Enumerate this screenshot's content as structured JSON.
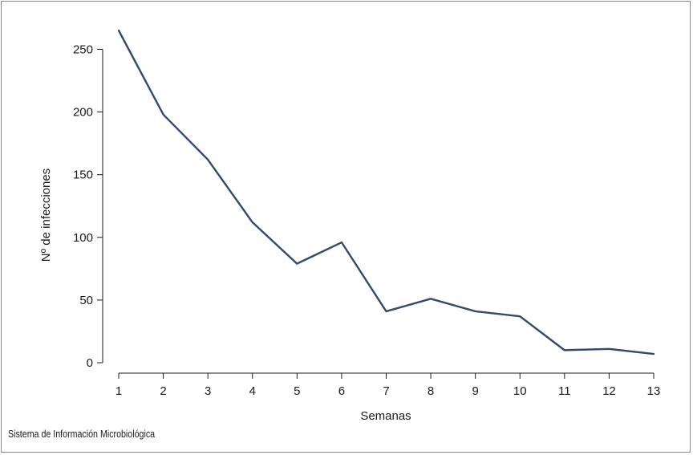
{
  "chart_data": {
    "type": "line",
    "title": "",
    "xlabel": "Semanas",
    "ylabel": "Nº de infecciones",
    "x": [
      1,
      2,
      3,
      4,
      5,
      6,
      7,
      8,
      9,
      10,
      11,
      12,
      13
    ],
    "series": [
      {
        "values": [
          265,
          198,
          162,
          112,
          79,
          96,
          41,
          51,
          41,
          37,
          10,
          11,
          7
        ]
      }
    ],
    "xlim": [
      1,
      13
    ],
    "ylim": [
      0,
      265
    ],
    "yticks": [
      0,
      50,
      100,
      150,
      200,
      250
    ],
    "xticks": [
      1,
      2,
      3,
      4,
      5,
      6,
      7,
      8,
      9,
      10,
      11,
      12,
      13
    ],
    "grid": false,
    "line_color": "#34496b"
  },
  "source_note": "Sistema de Información Microbiológica"
}
